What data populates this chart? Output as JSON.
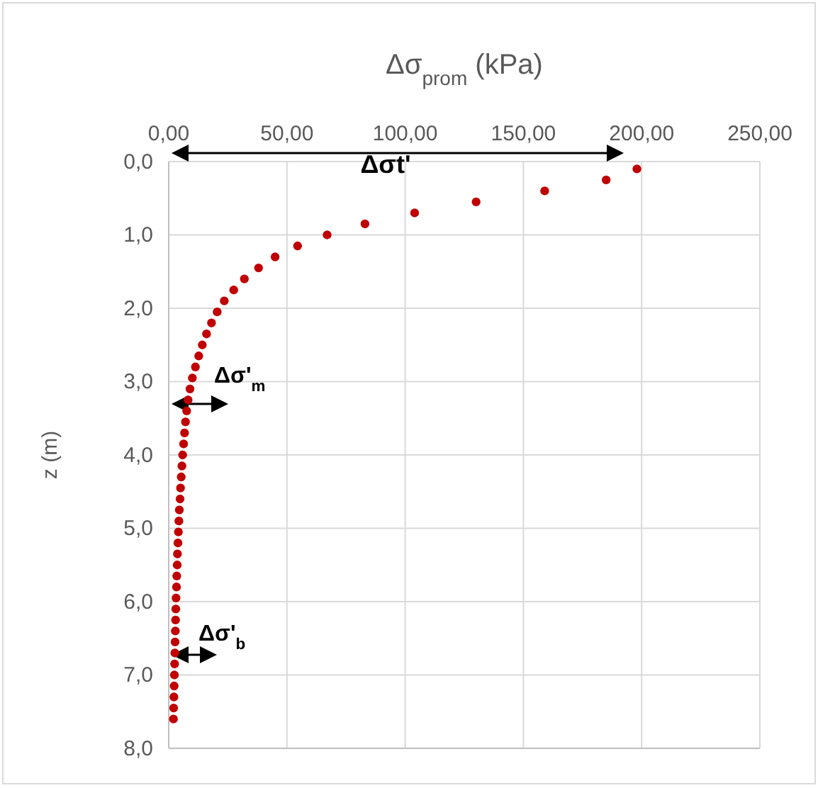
{
  "chart_data": {
    "type": "scatter",
    "xlabel": "Δσ$_{prom}$ (kPa)",
    "ylabel": "z (m)",
    "xlim": [
      0,
      250
    ],
    "xticks": [
      {
        "value": 0,
        "label": "0,00"
      },
      {
        "value": 50,
        "label": "50,00"
      },
      {
        "value": 100,
        "label": "100,00"
      },
      {
        "value": 150,
        "label": "150,00"
      },
      {
        "value": 200,
        "label": "200,00"
      },
      {
        "value": 250,
        "label": "250,00"
      }
    ],
    "ylim": [
      8,
      0
    ],
    "yticks": [
      {
        "value": 0,
        "label": "0,0"
      },
      {
        "value": 1,
        "label": "1,0"
      },
      {
        "value": 2,
        "label": "2,0"
      },
      {
        "value": 3,
        "label": "3,0"
      },
      {
        "value": 4,
        "label": "4,0"
      },
      {
        "value": 5,
        "label": "5,0"
      },
      {
        "value": 6,
        "label": "6,0"
      },
      {
        "value": 7,
        "label": "7,0"
      },
      {
        "value": 8,
        "label": "8,0"
      }
    ],
    "grid": true,
    "marker": "circle",
    "x": [
      198,
      185,
      159,
      130,
      104,
      83,
      67,
      54.5,
      45,
      38,
      32,
      27.5,
      23.5,
      20.5,
      18.1,
      16,
      14.2,
      12.7,
      11.3,
      10,
      9,
      8.2,
      7.6,
      7.1,
      6.7,
      6.3,
      5.9,
      5.6,
      5.3,
      5,
      4.8,
      4.5,
      4.3,
      4.1,
      3.9,
      3.7,
      3.6,
      3.4,
      3.3,
      3.1,
      3,
      2.9,
      2.8,
      2.7,
      2.6,
      2.5,
      2.4,
      2.3,
      2.2,
      2.1,
      2
    ],
    "series": [
      {
        "color": "#c00000",
        "values": [
          0.1,
          0.25,
          0.4,
          0.55,
          0.7,
          0.85,
          1,
          1.15,
          1.3,
          1.45,
          1.6,
          1.75,
          1.9,
          2.05,
          2.2,
          2.35,
          2.5,
          2.65,
          2.8,
          2.95,
          3.1,
          3.25,
          3.4,
          3.55,
          3.7,
          3.85,
          4,
          4.15,
          4.3,
          4.45,
          4.6,
          4.75,
          4.9,
          5.05,
          5.2,
          5.35,
          5.5,
          5.65,
          5.8,
          5.95,
          6.1,
          6.25,
          6.4,
          6.55,
          6.7,
          6.85,
          7,
          7.15,
          7.3,
          7.45,
          7.6
        ]
      }
    ],
    "annotations": [
      "Δσt'",
      "Δσ'$_{m}$",
      "Δσ'$_{b}$"
    ]
  }
}
